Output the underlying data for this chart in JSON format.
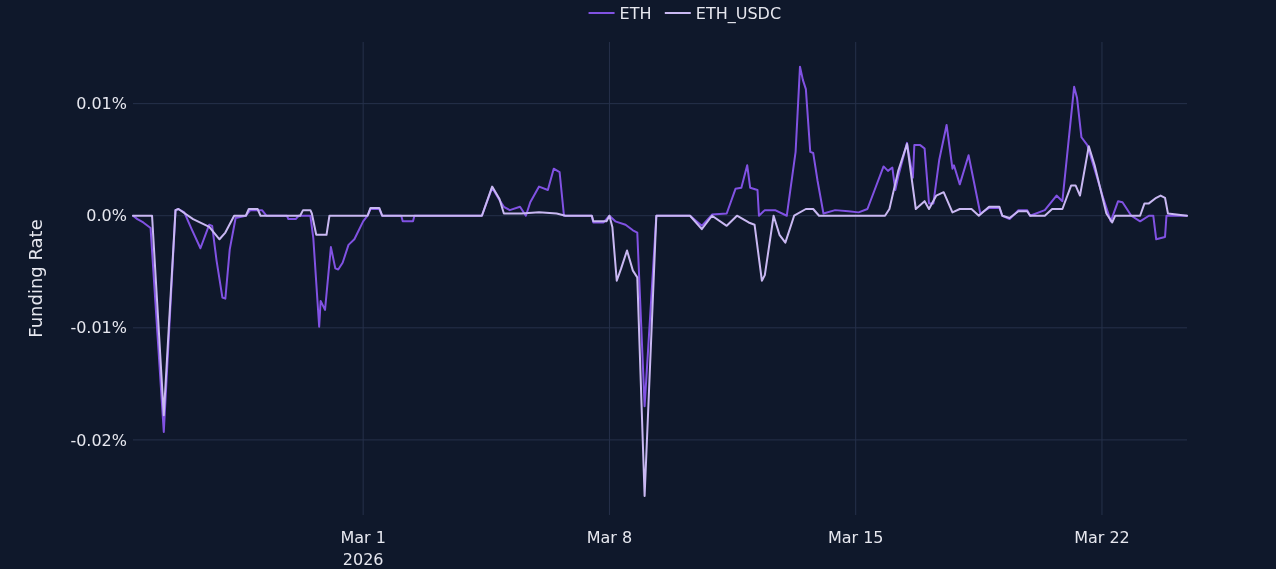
{
  "chart_data": {
    "type": "line",
    "ylabel": "Funding Rate",
    "legend": "top",
    "grid": true,
    "xlim": [
      "2026-02-22T11:00",
      "2026-03-24T10:00"
    ],
    "xticks": [
      {
        "value": "2026-03-01",
        "label": "Mar 1\n2026"
      },
      {
        "value": "2026-03-08",
        "label": "Mar 8"
      },
      {
        "value": "2026-03-15",
        "label": "Mar 15"
      },
      {
        "value": "2026-03-22",
        "label": "Mar 22"
      }
    ],
    "ylim": [
      -0.0267,
      0.0155
    ],
    "yticks": [
      {
        "value": 0.01,
        "label": "0.01%"
      },
      {
        "value": 0,
        "label": "0.0%"
      },
      {
        "value": -0.01,
        "label": "-0.01%"
      },
      {
        "value": -0.02,
        "label": "-0.02%"
      }
    ],
    "series": [
      {
        "name": "ETH",
        "color": "#8152e3",
        "x": [
          "2026-02-22T11:00",
          "2026-02-22T14:00",
          "2026-02-22T18:00",
          "2026-02-22T23:00",
          "2026-02-23T08:00",
          "2026-02-23T16:00",
          "2026-02-23T18:00",
          "2026-02-23T22:00",
          "2026-02-24T03:00",
          "2026-02-24T09:00",
          "2026-02-24T15:00",
          "2026-02-24T17:00",
          "2026-02-24T20:00",
          "2026-02-25T00:00",
          "2026-02-25T02:00",
          "2026-02-25T05:00",
          "2026-02-25T09:00",
          "2026-02-25T16:00",
          "2026-02-25T19:00",
          "2026-02-26T03:00",
          "2026-02-26T06:00",
          "2026-02-26T20:00",
          "2026-02-26T21:00",
          "2026-02-27T02:00",
          "2026-02-27T04:00",
          "2026-02-27T12:00",
          "2026-02-27T14:00",
          "2026-02-27T18:00",
          "2026-02-27T19:00",
          "2026-02-27T22:00",
          "2026-02-28T02:00",
          "2026-02-28T05:00",
          "2026-02-28T07:00",
          "2026-02-28T10:00",
          "2026-02-28T14:00",
          "2026-02-28T18:00",
          "2026-03-01T00:00",
          "2026-03-01T03:00",
          "2026-03-01T05:00",
          "2026-03-01T11:00",
          "2026-03-01T13:00",
          "2026-03-02T02:00",
          "2026-03-02T03:00",
          "2026-03-02T10:00",
          "2026-03-02T11:00",
          "2026-03-04T09:00",
          "2026-03-04T16:00",
          "2026-03-04T21:00",
          "2026-03-05T00:00",
          "2026-03-05T04:00",
          "2026-03-05T11:00",
          "2026-03-05T15:00",
          "2026-03-05T18:00",
          "2026-03-06T00:00",
          "2026-03-06T06:00",
          "2026-03-06T10:00",
          "2026-03-06T14:00",
          "2026-03-06T17:00",
          "2026-03-07T12:00",
          "2026-03-07T13:00",
          "2026-03-07T20:00",
          "2026-03-08T00:00",
          "2026-03-08T04:00",
          "2026-03-08T11:00",
          "2026-03-08T16:00",
          "2026-03-08T19:00",
          "2026-03-09T00:00",
          "2026-03-09T08:00",
          "2026-03-10T07:00",
          "2026-03-10T15:00",
          "2026-03-10T22:00",
          "2026-03-11T08:00",
          "2026-03-11T14:00",
          "2026-03-11T18:00",
          "2026-03-11T22:00",
          "2026-03-12T00:00",
          "2026-03-12T05:00",
          "2026-03-12T06:00",
          "2026-03-12T10:00",
          "2026-03-12T17:00",
          "2026-03-13T01:00",
          "2026-03-13T07:00",
          "2026-03-13T10:00",
          "2026-03-13T12:00",
          "2026-03-13T14:00",
          "2026-03-13T17:00",
          "2026-03-13T19:00",
          "2026-03-13T22:00",
          "2026-03-14T02:00",
          "2026-03-14T10:00",
          "2026-03-14T19:00",
          "2026-03-15T02:00",
          "2026-03-15T08:00",
          "2026-03-15T19:00",
          "2026-03-15T22:00",
          "2026-03-16T01:00",
          "2026-03-16T03:00",
          "2026-03-16T05:00",
          "2026-03-16T11:00",
          "2026-03-16T15:00",
          "2026-03-16T16:00",
          "2026-03-16T20:00",
          "2026-03-16T23:00",
          "2026-03-17T02:00",
          "2026-03-17T05:00",
          "2026-03-17T09:00",
          "2026-03-17T14:00",
          "2026-03-17T18:00",
          "2026-03-17T19:00",
          "2026-03-17T23:00",
          "2026-03-18T05:00",
          "2026-03-18T13:00",
          "2026-03-18T19:00",
          "2026-03-19T02:00",
          "2026-03-19T04:00",
          "2026-03-19T09:00",
          "2026-03-19T15:00",
          "2026-03-19T21:00",
          "2026-03-19T23:00",
          "2026-03-20T09:00",
          "2026-03-20T17:00",
          "2026-03-20T21:00",
          "2026-03-21T05:00",
          "2026-03-21T07:00",
          "2026-03-21T10:00",
          "2026-03-21T14:00",
          "2026-03-21T20:00",
          "2026-03-22T01:00",
          "2026-03-22T06:00",
          "2026-03-22T11:00",
          "2026-03-22T14:00",
          "2026-03-22T20:00",
          "2026-03-23T02:00",
          "2026-03-23T08:00",
          "2026-03-23T11:00",
          "2026-03-23T13:00",
          "2026-03-23T19:00",
          "2026-03-23T20:00",
          "2026-03-24T10:00"
        ],
        "values": [
          0,
          -0.0003,
          -0.0006,
          -0.0011,
          -0.0193,
          0.0005,
          0.0006,
          0.0003,
          -0.0012,
          -0.0029,
          -0.0008,
          -0.0009,
          -0.004,
          -0.0073,
          -0.0074,
          -0.003,
          -0.0002,
          0,
          0.0005,
          0.0005,
          0,
          0,
          -0.0003,
          -0.0003,
          0,
          0,
          -0.002,
          -0.0099,
          -0.0076,
          -0.0084,
          -0.0028,
          -0.0047,
          -0.0048,
          -0.0042,
          -0.0026,
          -0.0021,
          -0.0005,
          0,
          0.0006,
          0.0006,
          0,
          0,
          -0.0005,
          -0.0005,
          0,
          0,
          0.0025,
          0.0014,
          0.0008,
          0.0005,
          0.0008,
          0,
          0.0012,
          0.0026,
          0.0023,
          0.0042,
          0.0039,
          0,
          0,
          -0.0006,
          -0.0006,
          0,
          -0.0005,
          -0.0008,
          -0.0013,
          -0.0015,
          -0.017,
          0,
          0,
          -0.0009,
          0.0001,
          0.0002,
          0.0024,
          0.0025,
          0.0045,
          0.0025,
          0.0023,
          0,
          0.0005,
          0.0005,
          0,
          0.0057,
          0.0133,
          0.0121,
          0.0113,
          0.0057,
          0.0056,
          0.0031,
          0.0002,
          0.0005,
          0.0004,
          0.0003,
          0.0006,
          0.0044,
          0.004,
          0.0043,
          0.0023,
          0.0035,
          0.0065,
          0.0034,
          0.0063,
          0.0063,
          0.006,
          0.0011,
          0.0011,
          0.005,
          0.0081,
          0.0042,
          0.0045,
          0.0028,
          0.0054,
          0.0002,
          0.0007,
          0.0007,
          0,
          -0.0003,
          0.0005,
          0.0005,
          0,
          0.0005,
          0.0018,
          0.0013,
          0.0115,
          0.0105,
          0.007,
          0.0063,
          0.0037,
          0.0015,
          -0.0005,
          0.0013,
          0.0012,
          0,
          -0.0005,
          0,
          0,
          -0.0021,
          -0.0019,
          0,
          0
        ]
      },
      {
        "name": "ETH_USDC",
        "color": "#c9b8f2",
        "x": [
          "2026-02-22T11:00",
          "2026-02-23T00:00",
          "2026-02-23T08:00",
          "2026-02-23T16:00",
          "2026-02-23T18:00",
          "2026-02-24T04:00",
          "2026-02-24T15:00",
          "2026-02-24T22:00",
          "2026-02-25T02:00",
          "2026-02-25T08:00",
          "2026-02-25T16:00",
          "2026-02-25T18:00",
          "2026-02-26T00:00",
          "2026-02-26T02:00",
          "2026-02-27T05:00",
          "2026-02-27T07:00",
          "2026-02-27T12:00",
          "2026-02-27T13:00",
          "2026-02-27T16:00",
          "2026-02-27T23:00",
          "2026-02-28T01:00",
          "2026-03-01T03:00",
          "2026-03-01T05:00",
          "2026-03-01T11:00",
          "2026-03-01T13:00",
          "2026-03-04T09:00",
          "2026-03-04T16:00",
          "2026-03-04T21:00",
          "2026-03-05T00:00",
          "2026-03-05T12:00",
          "2026-03-06T00:00",
          "2026-03-06T12:00",
          "2026-03-06T18:00",
          "2026-03-07T12:00",
          "2026-03-07T13:00",
          "2026-03-07T22:00",
          "2026-03-08T00:00",
          "2026-03-08T02:00",
          "2026-03-08T05:00",
          "2026-03-08T08:00",
          "2026-03-08T12:00",
          "2026-03-08T16:00",
          "2026-03-08T19:00",
          "2026-03-09T00:00",
          "2026-03-09T08:00",
          "2026-03-10T07:00",
          "2026-03-10T15:00",
          "2026-03-10T22:00",
          "2026-03-11T08:00",
          "2026-03-11T15:00",
          "2026-03-11T23:00",
          "2026-03-12T03:00",
          "2026-03-12T08:00",
          "2026-03-12T10:00",
          "2026-03-12T16:00",
          "2026-03-12T20:00",
          "2026-03-13T00:00",
          "2026-03-13T06:00",
          "2026-03-13T14:00",
          "2026-03-13T19:00",
          "2026-03-13T23:00",
          "2026-03-15T20:00",
          "2026-03-15T23:00",
          "2026-03-16T05:00",
          "2026-03-16T11:00",
          "2026-03-16T17:00",
          "2026-03-16T23:00",
          "2026-03-17T02:00",
          "2026-03-17T07:00",
          "2026-03-17T12:00",
          "2026-03-17T18:00",
          "2026-03-17T23:00",
          "2026-03-18T07:00",
          "2026-03-18T12:00",
          "2026-03-18T19:00",
          "2026-03-19T02:00",
          "2026-03-19T04:00",
          "2026-03-19T09:00",
          "2026-03-19T15:00",
          "2026-03-19T21:00",
          "2026-03-19T23:00",
          "2026-03-20T09:00",
          "2026-03-20T14:00",
          "2026-03-20T21:00",
          "2026-03-21T03:00",
          "2026-03-21T06:00",
          "2026-03-21T09:00",
          "2026-03-21T15:00",
          "2026-03-21T19:00",
          "2026-03-22T03:00",
          "2026-03-22T07:00",
          "2026-03-22T09:00",
          "2026-03-23T02:00",
          "2026-03-23T05:00",
          "2026-03-23T08:00",
          "2026-03-23T13:00",
          "2026-03-23T16:00",
          "2026-03-23T19:00",
          "2026-03-23T21:00",
          "2026-03-24T10:00"
        ],
        "values": [
          0,
          0,
          -0.0178,
          0.0005,
          0.0006,
          -0.0003,
          -0.001,
          -0.0021,
          -0.0015,
          0,
          0,
          0.0006,
          0.0006,
          0,
          0,
          0.0005,
          0.0005,
          0.0002,
          -0.0017,
          -0.0017,
          0,
          0,
          0.0007,
          0.0007,
          0,
          0,
          0.0026,
          0.0015,
          0.0002,
          0.0002,
          0.0003,
          0.0002,
          0,
          0,
          -0.0005,
          -0.0005,
          0,
          -0.001,
          -0.0058,
          -0.0047,
          -0.0031,
          -0.0049,
          -0.0055,
          -0.025,
          0,
          0,
          -0.0012,
          0,
          -0.0009,
          0,
          -0.0006,
          -0.0008,
          -0.0058,
          -0.0053,
          0,
          -0.0017,
          -0.0024,
          0,
          0.0006,
          0.0006,
          0,
          0,
          0.0006,
          0.004,
          0.0064,
          0.0006,
          0.0013,
          0.0006,
          0.0018,
          0.0021,
          0.0003,
          0.0006,
          0.0006,
          0,
          0.0008,
          0.0008,
          0,
          -0.0002,
          0.0004,
          0.0004,
          0,
          0,
          0.0006,
          0.0006,
          0.0027,
          0.0027,
          0.0018,
          0.0062,
          0.0045,
          0.0002,
          -0.0006,
          0,
          0,
          0.0011,
          0.0011,
          0.0016,
          0.0018,
          0.0016,
          0.0002,
          0
        ]
      }
    ]
  }
}
